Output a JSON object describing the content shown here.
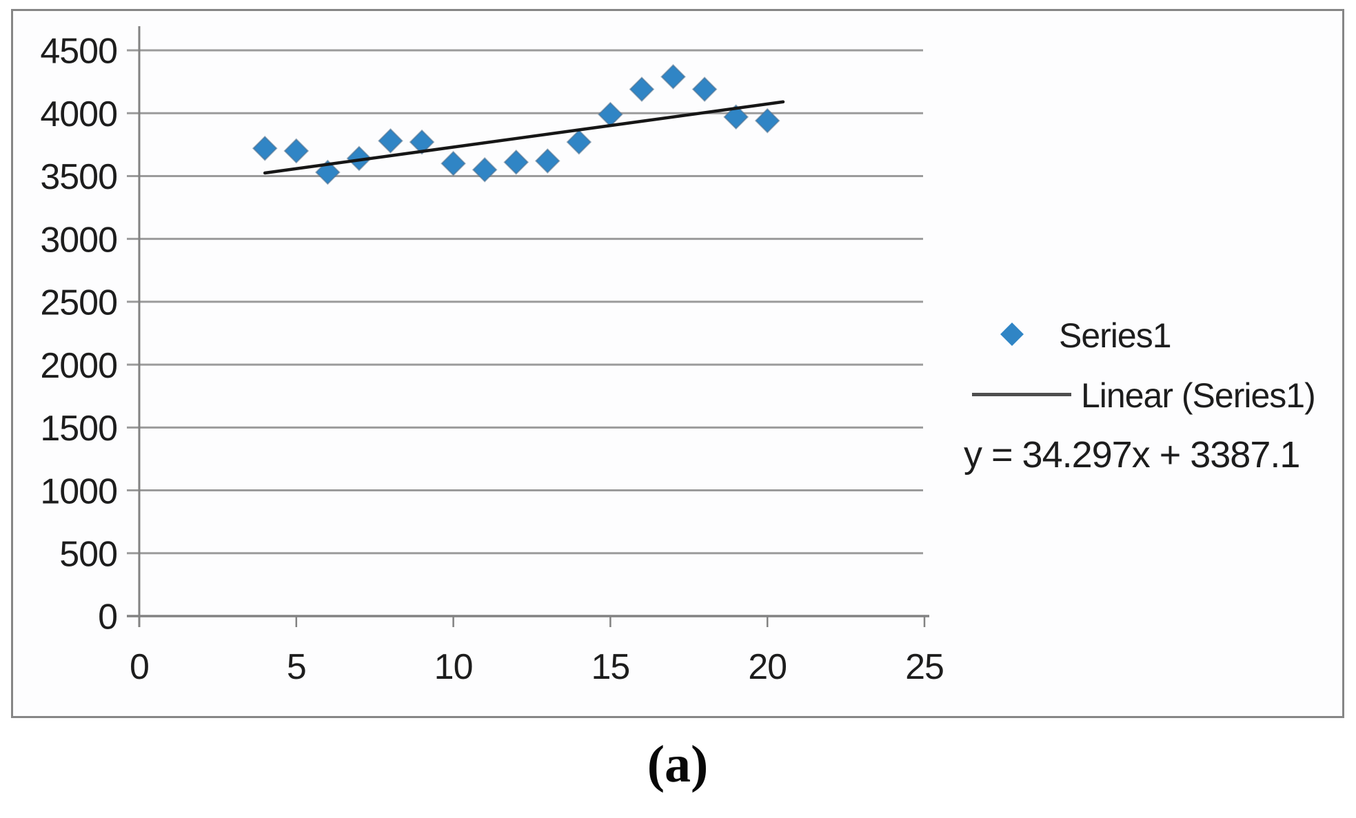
{
  "figure": {
    "caption": "(a)"
  },
  "colors": {
    "marker_fill": "#3085c5",
    "marker_edge": "rgba(80,108,134,0.5)",
    "trendline": "#161616",
    "gridline": "#9b9b9b",
    "axis_line": "#828282",
    "tick_text": "#1d1d1d",
    "frame_border": "#868686",
    "legend_line_sample": "#4e4e4e"
  },
  "chart_data": {
    "type": "scatter",
    "title": "",
    "xlabel": "",
    "ylabel": "",
    "xlim": [
      0,
      25
    ],
    "ylim": [
      0,
      4500
    ],
    "x_ticks": [
      0,
      5,
      10,
      15,
      20,
      25
    ],
    "y_ticks": [
      0,
      500,
      1000,
      1500,
      2000,
      2500,
      3000,
      3500,
      4000,
      4500
    ],
    "grid": true,
    "series": [
      {
        "name": "Series1",
        "marker": "diamond",
        "points": [
          [
            4,
            3720
          ],
          [
            5,
            3700
          ],
          [
            6,
            3530
          ],
          [
            7,
            3640
          ],
          [
            8,
            3780
          ],
          [
            9,
            3770
          ],
          [
            10,
            3600
          ],
          [
            11,
            3550
          ],
          [
            12,
            3610
          ],
          [
            13,
            3620
          ],
          [
            14,
            3770
          ],
          [
            15,
            3990
          ],
          [
            16,
            4190
          ],
          [
            17,
            4290
          ],
          [
            18,
            4190
          ],
          [
            19,
            3970
          ],
          [
            20,
            3940
          ]
        ]
      }
    ],
    "trendline": {
      "name": "Linear (Series1)",
      "equation": "y = 34.297x + 3387.1",
      "slope": 34.297,
      "intercept": 3387.1,
      "x_start": 4,
      "x_end": 20.5
    },
    "legend": {
      "position": "right",
      "items": [
        {
          "label": "Series1",
          "sample": "diamond-marker"
        },
        {
          "label": "Linear (Series1)",
          "sample": "line"
        }
      ]
    }
  }
}
